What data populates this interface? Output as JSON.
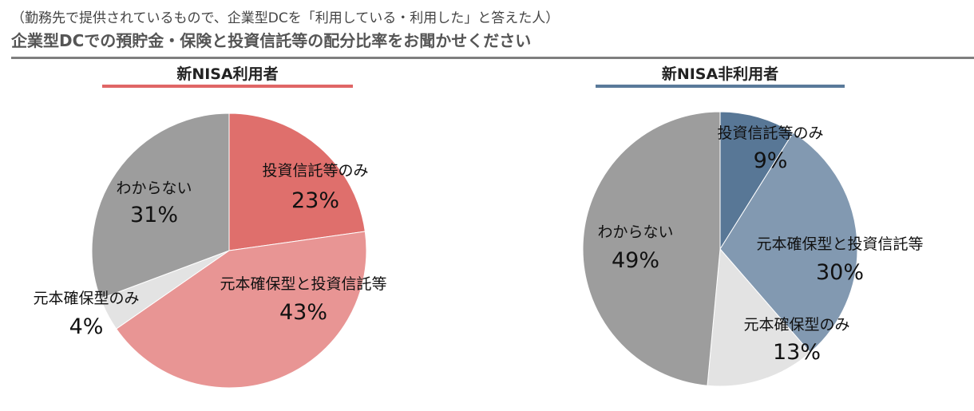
{
  "header": {
    "subtitle": "（勤務先で提供されているもので、企業型DCを「利用している・利用した」と答えた人）",
    "title": "企業型DCでの預貯金・保険と投資信託等の配分比率をお聞かせください"
  },
  "colors": {
    "rule": "#7f7f7f",
    "left_underline": "#e06666",
    "right_underline": "#5a7a9a"
  },
  "chart_data": [
    {
      "type": "pie",
      "title": "新NISA利用者",
      "slices": [
        {
          "label": "投資信託等のみ",
          "value": 23,
          "value_label": "23%",
          "color": "#df6f6c"
        },
        {
          "label": "元本確保型と投資信託等",
          "value": 43,
          "value_label": "43%",
          "color": "#e89594"
        },
        {
          "label": "元本確保型のみ",
          "value": 4,
          "value_label": "4%",
          "color": "#e3e3e3"
        },
        {
          "label": "わからない",
          "value": 31,
          "value_label": "31%",
          "color": "#9d9d9d"
        }
      ]
    },
    {
      "type": "pie",
      "title": "新NISA非利用者",
      "slices": [
        {
          "label": "投資信託等のみ",
          "value": 9,
          "value_label": "9%",
          "color": "#587796"
        },
        {
          "label": "元本確保型と投資信託等",
          "value": 30,
          "value_label": "30%",
          "color": "#8299b1"
        },
        {
          "label": "元本確保型のみ",
          "value": 13,
          "value_label": "13%",
          "color": "#e3e3e3"
        },
        {
          "label": "わからない",
          "value": 49,
          "value_label": "49%",
          "color": "#9d9d9d"
        }
      ]
    }
  ]
}
